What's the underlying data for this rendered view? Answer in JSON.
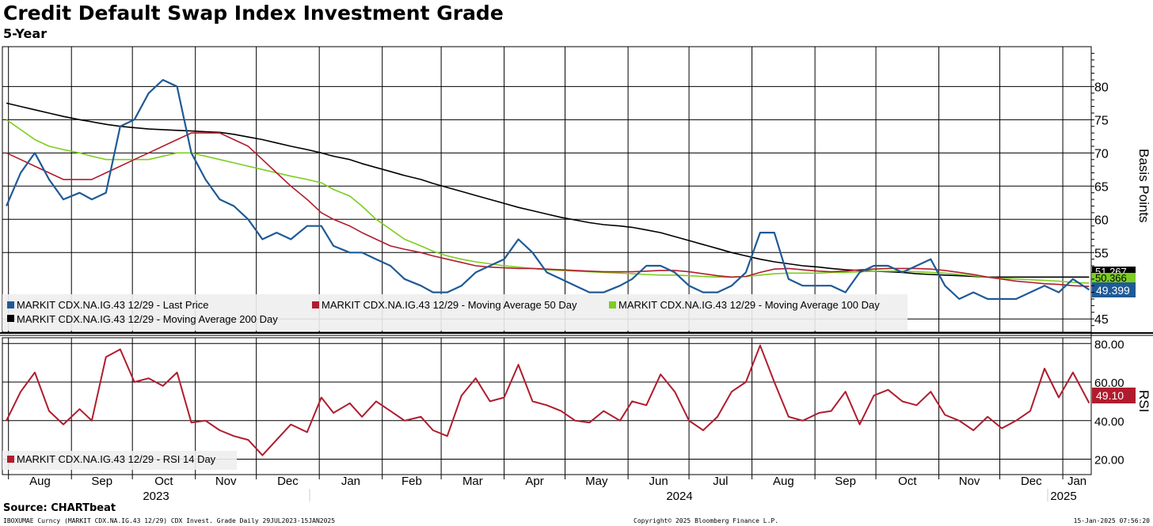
{
  "title": "Credit Default Swap Index Investment Grade",
  "subtitle": "5-Year",
  "source": "Source: CHARTbeat",
  "footer": {
    "left": "IBOXUMAE Curncy (MARKIT CDX.NA.IG.43 12/29) CDX Invest. Grade  Daily 29JUL2023-15JAN2025",
    "middle": "Copyright© 2025 Bloomberg Finance L.P.",
    "right": "15-Jan-2025 07:56:20"
  },
  "colors": {
    "last_price": "#1f5a96",
    "ma50": "#b01c2e",
    "ma100": "#7ccd1f",
    "ma200": "#000000",
    "rsi": "#b01c2e"
  },
  "chart_data": [
    {
      "type": "line",
      "panel": "price",
      "ylabel": "Basis Points",
      "ylim": [
        43,
        86
      ],
      "yticks": [
        45,
        55,
        60,
        65,
        70,
        75,
        80
      ],
      "grid": true,
      "legend_placement": "bottom-left",
      "x_month_labels": [
        "Aug",
        "Sep",
        "Oct",
        "Nov",
        "Dec",
        "Jan",
        "Feb",
        "Mar",
        "Apr",
        "May",
        "Jun",
        "Jul",
        "Aug",
        "Sep",
        "Oct",
        "Nov",
        "Dec",
        "Jan"
      ],
      "x_year_labels": [
        "2023",
        "2024",
        "2025"
      ],
      "x": [
        "2023-07-31",
        "2023-08-07",
        "2023-08-14",
        "2023-08-21",
        "2023-08-28",
        "2023-09-05",
        "2023-09-11",
        "2023-09-18",
        "2023-09-25",
        "2023-10-02",
        "2023-10-09",
        "2023-10-16",
        "2023-10-23",
        "2023-10-30",
        "2023-11-06",
        "2023-11-13",
        "2023-11-20",
        "2023-11-27",
        "2023-12-04",
        "2023-12-11",
        "2023-12-18",
        "2023-12-26",
        "2024-01-02",
        "2024-01-08",
        "2024-01-16",
        "2024-01-22",
        "2024-01-29",
        "2024-02-05",
        "2024-02-12",
        "2024-02-20",
        "2024-02-26",
        "2024-03-04",
        "2024-03-11",
        "2024-03-18",
        "2024-03-25",
        "2024-04-01",
        "2024-04-08",
        "2024-04-15",
        "2024-04-22",
        "2024-04-29",
        "2024-05-06",
        "2024-05-13",
        "2024-05-20",
        "2024-05-28",
        "2024-06-03",
        "2024-06-10",
        "2024-06-17",
        "2024-06-24",
        "2024-07-01",
        "2024-07-08",
        "2024-07-15",
        "2024-07-22",
        "2024-07-29",
        "2024-08-05",
        "2024-08-12",
        "2024-08-19",
        "2024-08-26",
        "2024-09-03",
        "2024-09-09",
        "2024-09-16",
        "2024-09-23",
        "2024-09-30",
        "2024-10-07",
        "2024-10-14",
        "2024-10-21",
        "2024-10-28",
        "2024-11-04",
        "2024-11-11",
        "2024-11-18",
        "2024-11-25",
        "2024-12-02",
        "2024-12-09",
        "2024-12-16",
        "2024-12-23",
        "2024-12-30",
        "2025-01-06",
        "2025-01-14"
      ],
      "series": [
        {
          "name": "MARKIT CDX.NA.IG.43 12/29 - Last Price",
          "values": [
            62,
            67,
            70,
            66,
            63,
            64,
            63,
            64,
            74,
            75,
            79,
            81,
            80,
            70,
            66,
            63,
            62,
            60,
            57,
            58,
            57,
            59,
            59,
            56,
            55,
            55,
            54,
            53,
            51,
            50,
            49,
            49,
            50,
            52,
            53,
            54,
            57,
            55,
            52,
            51,
            50,
            49,
            49,
            50,
            51,
            53,
            53,
            52,
            50,
            49,
            49,
            50,
            52,
            58,
            58,
            51,
            50,
            50,
            50,
            49,
            52,
            53,
            53,
            52,
            53,
            54,
            50,
            48,
            49,
            48,
            48,
            48,
            49,
            50,
            49,
            51,
            49.4
          ]
        },
        {
          "name": "MARKIT CDX.NA.IG.43 12/29 - Moving Average 50 Day",
          "values": [
            70,
            69,
            68,
            67,
            66,
            66,
            66,
            67,
            68,
            69,
            70,
            71,
            72,
            73,
            73,
            73,
            72,
            71,
            69,
            67,
            65,
            63,
            61,
            60,
            59,
            58,
            57,
            56,
            55.5,
            55,
            54.5,
            54,
            53.5,
            53,
            52.8,
            52.7,
            52.6,
            52.6,
            52.5,
            52.4,
            52.3,
            52.2,
            52.1,
            52.1,
            52.1,
            52.2,
            52.3,
            52.3,
            52.1,
            51.8,
            51.5,
            51.3,
            51.4,
            52,
            52.5,
            52.6,
            52.4,
            52.2,
            52.1,
            52.2,
            52.4,
            52.5,
            52.6,
            52.6,
            52.6,
            52.5,
            52.3,
            52,
            51.7,
            51.3,
            51,
            50.7,
            50.5,
            50.3,
            50.2,
            50,
            49.9
          ]
        },
        {
          "name": "MARKIT CDX.NA.IG.43 12/29 - Moving Average 100 Day",
          "values": [
            75,
            73.5,
            72,
            71,
            70.5,
            70,
            69.5,
            69,
            69,
            69,
            69,
            69.5,
            70,
            70,
            69.5,
            69,
            68.5,
            68,
            67.5,
            67,
            66.5,
            66,
            65.5,
            64.5,
            63.5,
            62,
            60,
            58.5,
            57,
            56,
            55.2,
            54.5,
            54,
            53.6,
            53.3,
            53,
            52.8,
            52.6,
            52.4,
            52.3,
            52.2,
            52.1,
            52,
            51.9,
            51.8,
            51.7,
            51.6,
            51.6,
            51.5,
            51.4,
            51.3,
            51.3,
            51.4,
            51.6,
            51.8,
            51.9,
            51.9,
            51.9,
            52,
            52,
            52.1,
            52.2,
            52.2,
            52.2,
            52.1,
            52,
            51.9,
            51.7,
            51.5,
            51.3,
            51.1,
            51,
            50.9,
            50.8,
            50.7,
            50.5,
            50.4
          ]
        },
        {
          "name": "MARKIT CDX.NA.IG.43 12/29 - Moving Average 200 Day",
          "values": [
            77.5,
            77,
            76.5,
            76,
            75.5,
            75,
            74.7,
            74.3,
            74,
            73.8,
            73.6,
            73.5,
            73.4,
            73.3,
            73.2,
            73.1,
            72.8,
            72.4,
            72,
            71.5,
            71,
            70.5,
            70,
            69.5,
            69,
            68.4,
            67.8,
            67.2,
            66.6,
            66,
            65.4,
            64.8,
            64.2,
            63.6,
            63,
            62.4,
            61.8,
            61.3,
            60.8,
            60.3,
            59.9,
            59.5,
            59.2,
            59,
            58.8,
            58.4,
            58,
            57.4,
            56.8,
            56.2,
            55.6,
            55,
            54.5,
            54,
            53.6,
            53.3,
            53,
            52.8,
            52.6,
            52.4,
            52.3,
            52.2,
            52.1,
            52,
            51.8,
            51.7,
            51.6,
            51.5,
            51.4,
            51.3,
            51.3,
            51.3,
            51.3,
            51.3,
            51.3,
            51.3,
            51.3
          ]
        }
      ],
      "last_value_labels": {
        "last_price": "49.399",
        "ma100_visible": "50.366",
        "ma200_visible": "51.267"
      }
    },
    {
      "type": "line",
      "panel": "rsi",
      "ylabel": "RSI",
      "ylim": [
        12,
        83
      ],
      "yticks": [
        "20.00",
        "40.00",
        "60.00",
        "80.00"
      ],
      "yticks_values": [
        20,
        40,
        60,
        80
      ],
      "grid": true,
      "series": [
        {
          "name": "MARKIT CDX.NA.IG.43 12/29 - RSI 14 Day",
          "values": [
            40,
            55,
            65,
            45,
            38,
            46,
            40,
            73,
            77,
            60,
            62,
            58,
            65,
            39,
            40,
            35,
            32,
            30,
            22,
            30,
            38,
            34,
            52,
            44,
            49,
            42,
            50,
            45,
            40,
            42,
            35,
            32,
            53,
            62,
            50,
            52,
            69,
            50,
            48,
            45,
            40,
            39,
            45,
            40,
            50,
            48,
            64,
            55,
            40,
            35,
            42,
            55,
            60,
            79,
            60,
            42,
            40,
            44,
            45,
            55,
            38,
            53,
            56,
            50,
            48,
            55,
            43,
            40,
            35,
            42,
            36,
            40,
            45,
            67,
            52,
            65,
            49.1
          ]
        }
      ],
      "last_value_label": "49.10"
    }
  ],
  "legend": {
    "last_price": "MARKIT CDX.NA.IG.43 12/29 - Last Price",
    "ma50": "MARKIT CDX.NA.IG.43 12/29 - Moving Average 50 Day",
    "ma100": "MARKIT CDX.NA.IG.43 12/29 - Moving Average 100 Day",
    "ma200": "MARKIT CDX.NA.IG.43 12/29 - Moving Average 200 Day",
    "rsi": "MARKIT CDX.NA.IG.43 12/29 - RSI 14 Day"
  }
}
